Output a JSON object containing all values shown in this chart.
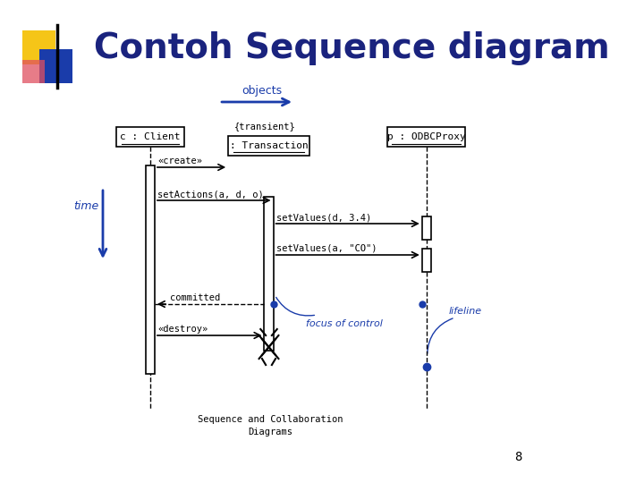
{
  "title": "Contoh Sequence diagram",
  "subtitle": "Sequence and Collaboration\nDiagrams",
  "page_number": "8",
  "title_color": "#1a237e",
  "title_fontsize": 28,
  "bg_color": "#ffffff",
  "diagram_color": "#000000",
  "blue_color": "#1a3caa",
  "objects_label": "objects",
  "client_label": "c : Client",
  "odbc_label": "p : ODBCProxy",
  "transient_label": "{transient}",
  "transaction_label": ": Transaction",
  "time_label": "time",
  "lifeline_label": "lifeline",
  "focus_label": "focus of control",
  "msg_create": "«create»",
  "msg_setactions": "setActions(a, d, o)",
  "msg_setvalues1": "setValues(d, 3.4)",
  "msg_setvalues2": "setValues(a, \"CO\")",
  "msg_committed": "committed",
  "msg_destroy": "«destroy»"
}
